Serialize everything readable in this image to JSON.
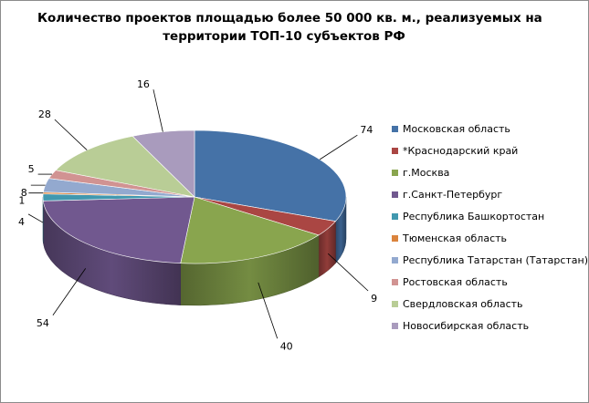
{
  "chart_data": {
    "type": "pie",
    "title": "Количество проектов площадью более 50 000 кв. м., реализуемых на территории ТОП-10 субъектов РФ",
    "title_lines": [
      "Количество проектов площадью более 50 000 кв. м., реализуемых на",
      "территории ТОП-10 субъектов РФ"
    ],
    "legend_position": "right",
    "style": "3d",
    "categories": [
      "Московская область",
      "*Краснодарский край",
      "г.Москва",
      "г.Санкт-Петербург",
      "Республика Башкортостан",
      "Тюменская область",
      "Республика Татарстан (Татарстан)",
      "Ростовская область",
      "Свердловская область",
      "Новосибирская область"
    ],
    "values": [
      74,
      9,
      40,
      54,
      4,
      1,
      8,
      5,
      28,
      16
    ],
    "colors": [
      "#4572a7",
      "#aa4643",
      "#89a54e",
      "#71588f",
      "#4198af",
      "#db843d",
      "#93a9cf",
      "#d19392",
      "#b9cd96",
      "#a99bbd"
    ],
    "data_labels": [
      "74",
      "9",
      "40",
      "54",
      "4",
      "1",
      "8",
      "5",
      "28",
      "16"
    ]
  }
}
